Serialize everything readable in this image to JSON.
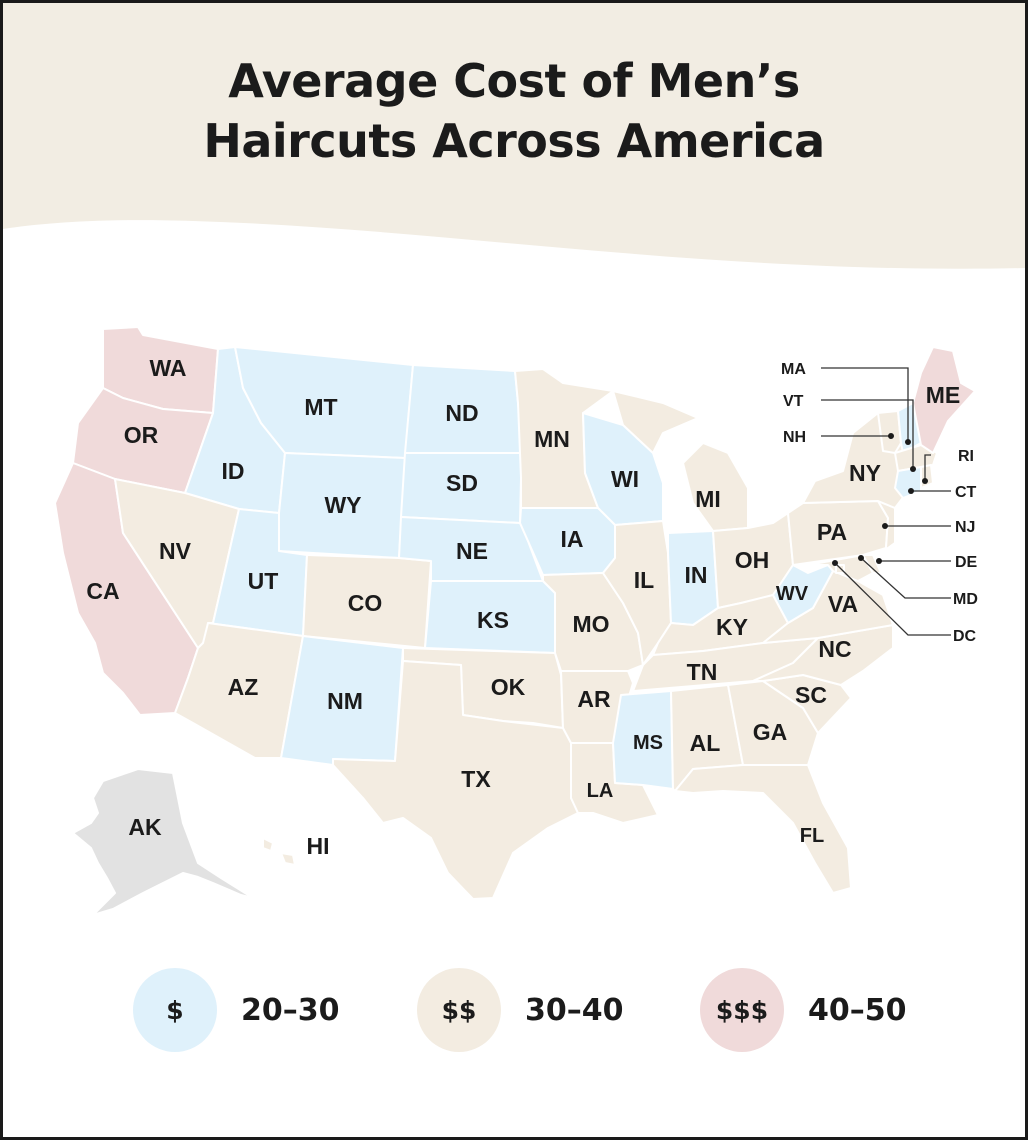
{
  "title": {
    "line1": "Average Cost of Men’s",
    "line2": "Haircuts Across America"
  },
  "colors": {
    "header_band": "#f2ede3",
    "tier1": "#dff1fb",
    "tier2": "#f3ece1",
    "tier3": "#f0dada",
    "no_data": "#e2e2e2",
    "text": "#1b1b1b"
  },
  "legend": [
    {
      "symbol": "$",
      "range": "20–30",
      "tier": "tier1"
    },
    {
      "symbol": "$$",
      "range": "30–40",
      "tier": "tier2"
    },
    {
      "symbol": "$$$",
      "range": "40–50",
      "tier": "tier3"
    }
  ],
  "states": {
    "WA": {
      "label": "WA",
      "tier": "tier3"
    },
    "OR": {
      "label": "OR",
      "tier": "tier3"
    },
    "CA": {
      "label": "CA",
      "tier": "tier3"
    },
    "ME": {
      "label": "ME",
      "tier": "tier3"
    },
    "ID": {
      "label": "ID",
      "tier": "tier1"
    },
    "MT": {
      "label": "MT",
      "tier": "tier1"
    },
    "WY": {
      "label": "WY",
      "tier": "tier1"
    },
    "UT": {
      "label": "UT",
      "tier": "tier1"
    },
    "ND": {
      "label": "ND",
      "tier": "tier1"
    },
    "SD": {
      "label": "SD",
      "tier": "tier1"
    },
    "NE": {
      "label": "NE",
      "tier": "tier1"
    },
    "KS": {
      "label": "KS",
      "tier": "tier1"
    },
    "NM": {
      "label": "NM",
      "tier": "tier1"
    },
    "IA": {
      "label": "IA",
      "tier": "tier1"
    },
    "WI": {
      "label": "WI",
      "tier": "tier1"
    },
    "IN": {
      "label": "IN",
      "tier": "tier1"
    },
    "MS": {
      "label": "MS",
      "tier": "tier1"
    },
    "WV": {
      "label": "WV",
      "tier": "tier1"
    },
    "NH": {
      "label": "NH",
      "tier": "tier1"
    },
    "CT": {
      "label": "CT",
      "tier": "tier1"
    },
    "NV": {
      "label": "NV",
      "tier": "tier2"
    },
    "AZ": {
      "label": "AZ",
      "tier": "tier2"
    },
    "CO": {
      "label": "CO",
      "tier": "tier2"
    },
    "OK": {
      "label": "OK",
      "tier": "tier2"
    },
    "TX": {
      "label": "TX",
      "tier": "tier2"
    },
    "MN": {
      "label": "MN",
      "tier": "tier2"
    },
    "MO": {
      "label": "MO",
      "tier": "tier2"
    },
    "AR": {
      "label": "AR",
      "tier": "tier2"
    },
    "LA": {
      "label": "LA",
      "tier": "tier2"
    },
    "IL": {
      "label": "IL",
      "tier": "tier2"
    },
    "MI": {
      "label": "MI",
      "tier": "tier2"
    },
    "OH": {
      "label": "OH",
      "tier": "tier2"
    },
    "KY": {
      "label": "KY",
      "tier": "tier2"
    },
    "TN": {
      "label": "TN",
      "tier": "tier2"
    },
    "AL": {
      "label": "AL",
      "tier": "tier2"
    },
    "GA": {
      "label": "GA",
      "tier": "tier2"
    },
    "FL": {
      "label": "FL",
      "tier": "tier2"
    },
    "SC": {
      "label": "SC",
      "tier": "tier2"
    },
    "NC": {
      "label": "NC",
      "tier": "tier2"
    },
    "VA": {
      "label": "VA",
      "tier": "tier2"
    },
    "PA": {
      "label": "PA",
      "tier": "tier2"
    },
    "NY": {
      "label": "NY",
      "tier": "tier2"
    },
    "VT": {
      "label": "VT",
      "tier": "tier2"
    },
    "MA": {
      "label": "MA",
      "tier": "tier2"
    },
    "RI": {
      "label": "RI",
      "tier": "tier2"
    },
    "NJ": {
      "label": "NJ",
      "tier": "tier2"
    },
    "DE": {
      "label": "DE",
      "tier": "tier2"
    },
    "MD": {
      "label": "MD",
      "tier": "tier2"
    },
    "DC": {
      "label": "DC",
      "tier": "tier2"
    },
    "HI": {
      "label": "HI",
      "tier": "tier2"
    },
    "AK": {
      "label": "AK",
      "tier": "no_data"
    }
  }
}
